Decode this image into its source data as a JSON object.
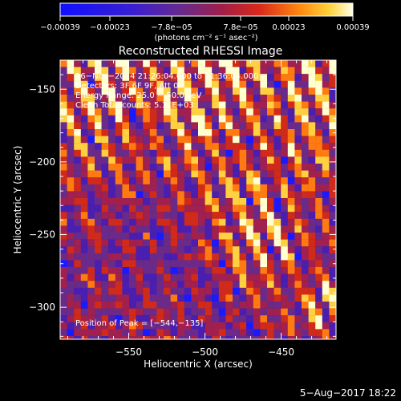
{
  "chart_data": {
    "type": "heatmap",
    "title": "Reconstructed RHESSI Image",
    "xlabel": "Heliocentric X (arcsec)",
    "ylabel": "Heliocentric Y (arcsec)",
    "xlim": [
      -595,
      -414
    ],
    "ylim": [
      -322,
      -130
    ],
    "x_ticks": [
      -550,
      -500,
      -450
    ],
    "y_ticks": [
      -150,
      -200,
      -250,
      -300
    ],
    "x_tick_labels": [
      "−550",
      "−500",
      "−450"
    ],
    "y_tick_labels": [
      "−150",
      "−200",
      "−250",
      "−300"
    ],
    "colorbar": {
      "range": [
        -0.00039,
        0.00039
      ],
      "tick_labels": [
        "−0.00039",
        "−0.00023",
        "−7.8e−05",
        "7.8e−05",
        "0.00023",
        "0.00039"
      ],
      "unit_label": "(photons cm⁻² s⁻¹ asec⁻²)",
      "colors": [
        "#1a1aff",
        "#4a1fb0",
        "#6a2a8a",
        "#a02050",
        "#d02a1a",
        "#ff7a10",
        "#ffd040",
        "#ffffd0"
      ]
    },
    "annotations": [
      "16−Nov−2014 21:26:04.000 to 21:36:04.000",
      "Detectors: 3F 6F 9F, Att 0",
      "Energy Range: 25.0 − 50.0 keV",
      "Clean    Total counts: 5.11E+03"
    ],
    "peak_label": "Position of Peak = [−544,−135]",
    "peak": [
      -544,
      -135
    ],
    "grid": false
  },
  "footer": {
    "date": "5−Aug−2017 18:22"
  }
}
